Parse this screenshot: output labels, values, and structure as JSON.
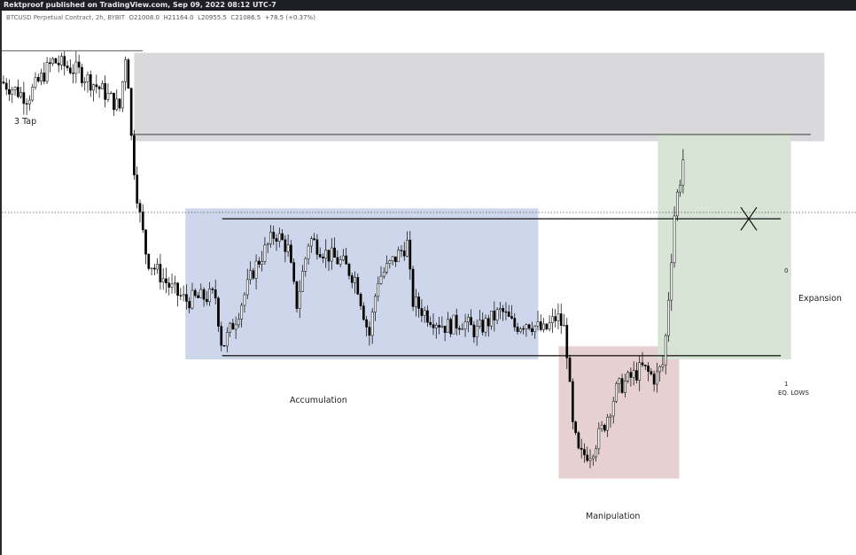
{
  "header": {
    "text": "Rektproof published on TradingView.com, Sep 09, 2022 08:12 UTC-7"
  },
  "legend": {
    "symbol": "BTCUSD Perpetual Contract, 2h, BYBIT",
    "open_key": "O",
    "open": "21008.0",
    "high_key": "H",
    "high": "21164.0",
    "low_key": "L",
    "low": "20955.5",
    "close_key": "C",
    "close": "21086.5",
    "change": "+78.5 (+0.37%)"
  },
  "annotations": {
    "tap": "3 Tap",
    "accumulation": "Accumulation",
    "manipulation": "Manipulation",
    "expansion": "Expansion",
    "eq_lows": "EQ. LOWS",
    "level_zero": "0",
    "level_one": "1"
  },
  "colors": {
    "candle_body_up": "#ffffff",
    "candle_body_down": "#000000",
    "candle_outline": "#000000",
    "zone_supply": "#d9d9db",
    "zone_accumulation": "#cdd6ea",
    "zone_manipulation": "#e7d0d2",
    "zone_expansion": "#d5e3d4"
  },
  "chart_data": {
    "type": "candlestick",
    "price_range_normalized": [
      0,
      1
    ],
    "zones": [
      {
        "name": "supply",
        "x_range": [
          0.155,
          0.963
        ],
        "price_range": [
          0.766,
          0.936
        ]
      },
      {
        "name": "accumulation",
        "x_range": [
          0.215,
          0.628
        ],
        "price_range": [
          0.347,
          0.637
        ]
      },
      {
        "name": "manipulation",
        "x_range": [
          0.652,
          0.793
        ],
        "price_range": [
          0.118,
          0.372
        ]
      },
      {
        "name": "expansion",
        "x_range": [
          0.768,
          0.924
        ],
        "price_range": [
          0.347,
          0.782
        ]
      }
    ],
    "levels": [
      {
        "name": "range high (0)",
        "price": 0.617,
        "x_range": [
          0.258,
          0.912
        ]
      },
      {
        "name": "range low / eq lows (1)",
        "price": 0.354,
        "x_range": [
          0.258,
          0.912
        ]
      },
      {
        "name": "supply line",
        "price": 0.779,
        "x_range": [
          0.15,
          0.947
        ]
      },
      {
        "name": "3 tap line",
        "price": 0.94,
        "x_range": [
          0.0,
          0.165
        ]
      }
    ],
    "anchors": [
      [
        0,
        0.88
      ],
      [
        0.03,
        0.85
      ],
      [
        0.06,
        0.92
      ],
      [
        0.09,
        0.9
      ],
      [
        0.12,
        0.86
      ],
      [
        0.138,
        0.83
      ],
      [
        0.146,
        0.95
      ],
      [
        0.152,
        0.76
      ],
      [
        0.16,
        0.64
      ],
      [
        0.17,
        0.54
      ],
      [
        0.2,
        0.48
      ],
      [
        0.215,
        0.46
      ],
      [
        0.25,
        0.47
      ],
      [
        0.258,
        0.37
      ],
      [
        0.275,
        0.43
      ],
      [
        0.295,
        0.52
      ],
      [
        0.32,
        0.59
      ],
      [
        0.335,
        0.56
      ],
      [
        0.345,
        0.45
      ],
      [
        0.36,
        0.58
      ],
      [
        0.38,
        0.55
      ],
      [
        0.4,
        0.53
      ],
      [
        0.415,
        0.5
      ],
      [
        0.43,
        0.39
      ],
      [
        0.44,
        0.5
      ],
      [
        0.46,
        0.54
      ],
      [
        0.475,
        0.57
      ],
      [
        0.48,
        0.46
      ],
      [
        0.5,
        0.43
      ],
      [
        0.52,
        0.41
      ],
      [
        0.54,
        0.42
      ],
      [
        0.555,
        0.4
      ],
      [
        0.57,
        0.42
      ],
      [
        0.585,
        0.44
      ],
      [
        0.6,
        0.41
      ],
      [
        0.615,
        0.42
      ],
      [
        0.635,
        0.4
      ],
      [
        0.65,
        0.43
      ],
      [
        0.66,
        0.4
      ],
      [
        0.668,
        0.22
      ],
      [
        0.676,
        0.16
      ],
      [
        0.69,
        0.17
      ],
      [
        0.705,
        0.22
      ],
      [
        0.72,
        0.29
      ],
      [
        0.735,
        0.31
      ],
      [
        0.75,
        0.33
      ],
      [
        0.765,
        0.31
      ],
      [
        0.775,
        0.34
      ],
      [
        0.782,
        0.5
      ],
      [
        0.788,
        0.64
      ],
      [
        0.795,
        0.7
      ],
      [
        0.8,
        0.76
      ]
    ]
  }
}
